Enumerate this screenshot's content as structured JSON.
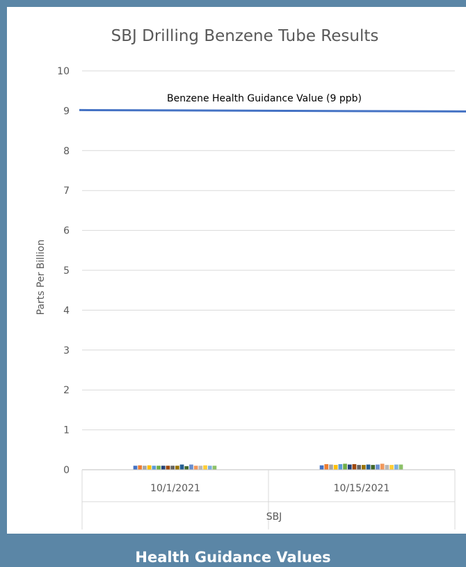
{
  "caption": "Health Guidance Values",
  "chart_data": {
    "type": "bar",
    "title": "SBJ Drilling Benzene Tube Results",
    "ylabel": "Parts Per Billion",
    "xgroup_label": "SBJ",
    "ylim": [
      0,
      10
    ],
    "yticks": [
      0,
      1,
      2,
      3,
      4,
      5,
      6,
      7,
      8,
      9,
      10
    ],
    "grid": true,
    "categories": [
      "10/1/2021",
      "10/15/2021"
    ],
    "series_colors": [
      "#4472c4",
      "#ed7d31",
      "#a5a5a5",
      "#ffc000",
      "#5b9bd5",
      "#70ad47",
      "#264478",
      "#9e480e",
      "#636363",
      "#997300",
      "#255e91",
      "#43682b",
      "#698ed0",
      "#f1975a",
      "#b7b7b7",
      "#ffcd33",
      "#7cafdd",
      "#8cc168"
    ],
    "series_values": [
      [
        0.1,
        0.11,
        0.1,
        0.11,
        0.1,
        0.1,
        0.1,
        0.1,
        0.1,
        0.1,
        0.13,
        0.09,
        0.13,
        0.1,
        0.1,
        0.11,
        0.1,
        0.1
      ],
      [
        0.11,
        0.14,
        0.13,
        0.12,
        0.14,
        0.15,
        0.13,
        0.14,
        0.12,
        0.12,
        0.13,
        0.12,
        0.13,
        0.15,
        0.12,
        0.12,
        0.13,
        0.13
      ]
    ],
    "reference_line": {
      "value": 9,
      "label": "Benzene Health Guidance Value (9 ppb)",
      "color": "#4472c4"
    }
  }
}
